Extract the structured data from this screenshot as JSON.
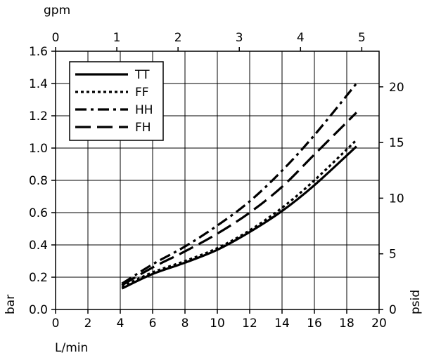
{
  "chart_data": {
    "type": "line",
    "xlabel": "L/min",
    "ylabel": "bar",
    "x2label": "gpm",
    "y2label": "psid",
    "xlim": [
      0,
      20
    ],
    "ylim": [
      0,
      1.6
    ],
    "x2lim": [
      0,
      5.283
    ],
    "y2lim": [
      0,
      23.2
    ],
    "xticks": [
      0,
      2,
      4,
      6,
      8,
      10,
      12,
      14,
      16,
      18,
      20
    ],
    "yticks": [
      0.0,
      0.2,
      0.4,
      0.6,
      0.8,
      1.0,
      1.2,
      1.4,
      1.6
    ],
    "x2ticks": [
      0,
      1,
      2,
      3,
      4,
      5
    ],
    "y2ticks": [
      0,
      5,
      10,
      15,
      20
    ],
    "xtick_labels": [
      "0",
      "2",
      "4",
      "6",
      "8",
      "10",
      "12",
      "14",
      "16",
      "18",
      "20"
    ],
    "ytick_labels": [
      "0.0",
      "0.2",
      "0.4",
      "0.6",
      "0.8",
      "1.0",
      "1.2",
      "1.4",
      "1.6"
    ],
    "x2tick_labels": [
      "0",
      "1",
      "2",
      "3",
      "4",
      "5"
    ],
    "y2tick_labels": [
      "0",
      "5",
      "10",
      "15",
      "20"
    ],
    "grid": true,
    "legend_position": "top-left",
    "series": [
      {
        "name": "TT",
        "style": "solid",
        "x": [
          4.1,
          6,
          8,
          10,
          12,
          14,
          16,
          18.6
        ],
        "y": [
          0.13,
          0.22,
          0.29,
          0.37,
          0.48,
          0.61,
          0.77,
          1.01
        ]
      },
      {
        "name": "FF",
        "style": "dotted",
        "x": [
          4.1,
          6,
          8,
          10,
          12,
          14,
          16,
          18.6
        ],
        "y": [
          0.14,
          0.23,
          0.3,
          0.38,
          0.49,
          0.63,
          0.8,
          1.05
        ]
      },
      {
        "name": "HH",
        "style": "dashdot",
        "x": [
          4.1,
          6,
          8,
          10,
          12,
          14,
          16,
          18.6
        ],
        "y": [
          0.16,
          0.28,
          0.39,
          0.52,
          0.67,
          0.86,
          1.08,
          1.4
        ]
      },
      {
        "name": "FH",
        "style": "dashed",
        "x": [
          4.1,
          6,
          8,
          10,
          12,
          14,
          16,
          18.6
        ],
        "y": [
          0.15,
          0.26,
          0.36,
          0.47,
          0.6,
          0.76,
          0.96,
          1.22
        ]
      }
    ]
  }
}
